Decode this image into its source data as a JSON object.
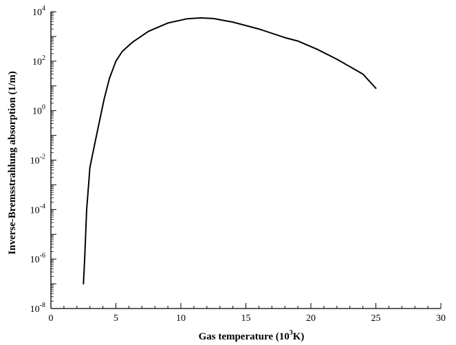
{
  "chart_data": {
    "type": "line",
    "title": "",
    "xlabel": {
      "main": "Gas temperature (10",
      "sup": "3",
      "tail": "K)"
    },
    "ylabel": "Inverse-Bremsstrahlung absorption (1/m)",
    "xscale": "linear",
    "yscale": "log",
    "xlim": [
      0,
      30
    ],
    "ylim": [
      1e-08,
      10000.0
    ],
    "grid": false,
    "legend": "none",
    "x_ticks": [
      "0",
      "5",
      "10",
      "15",
      "20",
      "25",
      "30"
    ],
    "y_ticks": [
      {
        "base": "10",
        "exp": "-8"
      },
      {
        "base": "10",
        "exp": "-6"
      },
      {
        "base": "10",
        "exp": "-4"
      },
      {
        "base": "10",
        "exp": "-2"
      },
      {
        "base": "10",
        "exp": "0"
      },
      {
        "base": "10",
        "exp": "2"
      },
      {
        "base": "10",
        "exp": "4"
      }
    ],
    "line_color": "#000000",
    "series": [
      {
        "x": [
          2.5,
          2.6,
          2.75,
          2.9,
          3.0,
          3.3,
          3.7,
          4.1,
          4.5,
          5.0,
          5.5,
          6.3,
          7.5,
          9.0,
          10.5,
          11.5,
          12.5,
          14.0,
          16.0,
          18.0,
          19.0,
          20.5,
          22.0,
          23.0,
          24.0,
          25.0
        ],
        "y": [
          1e-07,
          1e-06,
          0.0001,
          0.001,
          0.005,
          0.03,
          0.3,
          3,
          20,
          100,
          250,
          600,
          1600,
          3500,
          5200,
          5600,
          5300,
          3800,
          2000,
          900,
          650,
          300,
          120,
          60,
          30,
          8
        ]
      }
    ]
  }
}
